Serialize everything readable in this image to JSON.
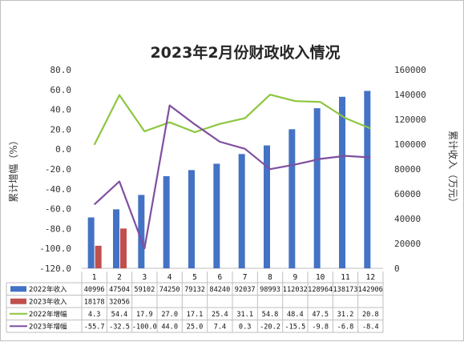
{
  "chart_data": {
    "type": "bar",
    "title": "2023年2月份财政收入情况",
    "categories": [
      "1",
      "2",
      "3",
      "4",
      "5",
      "6",
      "7",
      "8",
      "9",
      "10",
      "11",
      "12"
    ],
    "left_axis": {
      "label": "累计增幅（%）",
      "ylim": [
        -120,
        80
      ],
      "ticks": [
        "80.0",
        "60.0",
        "40.0",
        "20.0",
        "0.0",
        "-20.0",
        "-40.0",
        "-60.0",
        "-80.0",
        "-100.0",
        "-120.0"
      ]
    },
    "right_axis": {
      "label": "累计收入（万元）",
      "ylim": [
        0,
        160000
      ],
      "ticks": [
        "160000",
        "140000",
        "120000",
        "100000",
        "80000",
        "60000",
        "40000",
        "20000",
        "0"
      ]
    },
    "series": [
      {
        "name": "2022年收入",
        "type": "bar",
        "axis": "right",
        "color": "#4472C4",
        "values": [
          40996,
          47504,
          59102,
          74250,
          79132,
          84240,
          92037,
          98993,
          112032,
          128964,
          138173,
          142906
        ],
        "labels": [
          "40996",
          "47504",
          "59102",
          "74250",
          "79132",
          "84240",
          "92037",
          "98993",
          "112032",
          "128964",
          "138173",
          "142906"
        ]
      },
      {
        "name": "2023年收入",
        "type": "bar",
        "axis": "right",
        "color": "#C0504D",
        "values": [
          18178,
          32056,
          null,
          null,
          null,
          null,
          null,
          null,
          null,
          null,
          null,
          null
        ],
        "labels": [
          "18178",
          "32056",
          "",
          "",
          "",
          "",
          "",
          "",
          "",
          "",
          "",
          ""
        ]
      },
      {
        "name": "2022年增幅",
        "type": "line",
        "axis": "left",
        "color": "#8DC63F",
        "values": [
          4.3,
          54.4,
          17.9,
          27.0,
          17.1,
          25.4,
          31.1,
          54.8,
          48.4,
          47.5,
          31.2,
          20.8
        ],
        "labels": [
          "4.3",
          "54.4",
          "17.9",
          "27.0",
          "17.1",
          "25.4",
          "31.1",
          "54.8",
          "48.4",
          "47.5",
          "31.2",
          "20.8"
        ]
      },
      {
        "name": "2023年增幅",
        "type": "line",
        "axis": "left",
        "color": "#7F4FA0",
        "values": [
          -55.7,
          -32.5,
          -100.0,
          44.0,
          25.0,
          7.4,
          0.3,
          -20.2,
          -15.5,
          -9.8,
          -6.8,
          -8.4
        ],
        "labels": [
          "-55.7",
          "-32.5",
          "-100.0",
          "44.0",
          "25.0",
          "7.4",
          "0.3",
          "-20.2",
          "-15.5",
          "-9.8",
          "-6.8",
          "-8.4"
        ]
      }
    ],
    "grid": false,
    "legend": "data-table"
  }
}
